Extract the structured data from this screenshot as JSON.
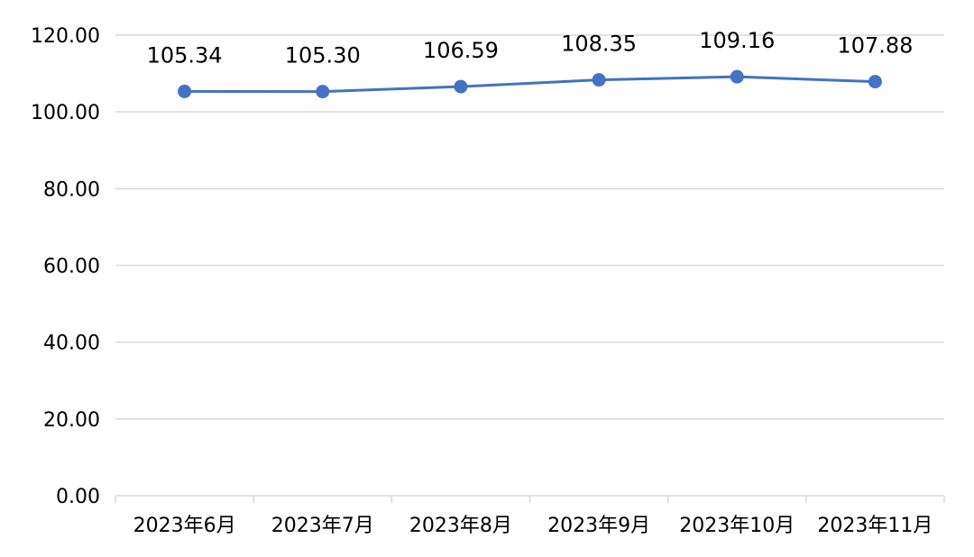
{
  "chart_data": {
    "type": "line",
    "title": "",
    "xlabel": "",
    "ylabel": "",
    "categories": [
      "2023年6月",
      "2023年7月",
      "2023年8月",
      "2023年9月",
      "2023年10月",
      "2023年11月"
    ],
    "series": [
      {
        "values": [
          105.34,
          105.3,
          106.59,
          108.35,
          109.16,
          107.88
        ],
        "labels": [
          "105.34",
          "105.30",
          "106.59",
          "108.35",
          "109.16",
          "107.88"
        ],
        "color": "#4472C4"
      }
    ],
    "ylim": [
      0,
      120
    ],
    "yticks": [
      0,
      20,
      40,
      60,
      80,
      100,
      120
    ],
    "ytick_labels": [
      "0.00",
      "20.00",
      "40.00",
      "60.00",
      "80.00",
      "100.00",
      "120.00"
    ],
    "grid": true,
    "legend": "none"
  }
}
